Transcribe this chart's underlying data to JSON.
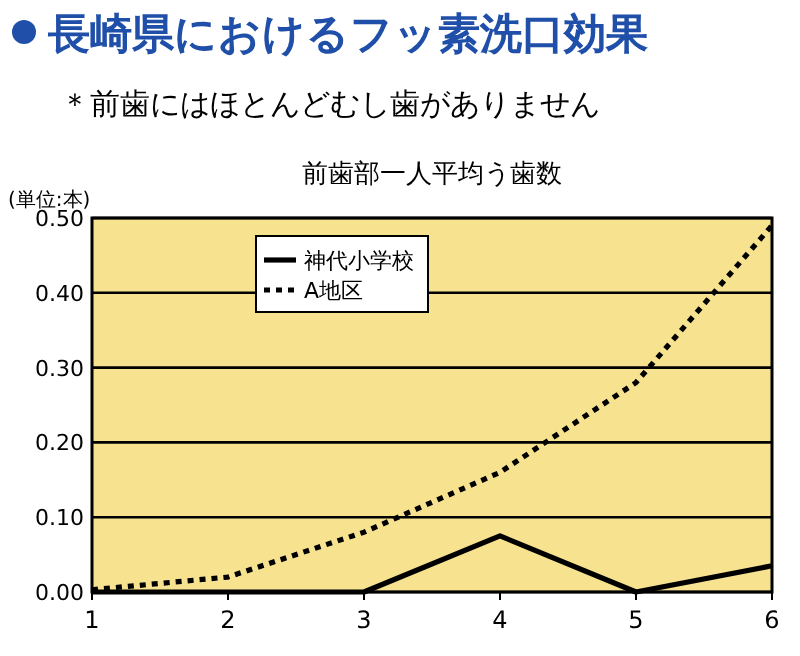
{
  "chart_data": {
    "type": "line",
    "title": "長崎県におけるフッ素洗口効果",
    "subtitle": "前歯部一人平均う歯数",
    "ylabel": "(単位:本)",
    "annotations": [
      "＊前歯にはほとんどむし歯がありません"
    ],
    "x": [
      1,
      2,
      3,
      4,
      5,
      6
    ],
    "xlim": [
      1,
      6
    ],
    "xticks": [
      1,
      2,
      3,
      4,
      5,
      6
    ],
    "ylim": [
      0,
      0.5
    ],
    "yticks": [
      {
        "value": 0,
        "label": "0.00"
      },
      {
        "value": 0.1,
        "label": "0.10"
      },
      {
        "value": 0.2,
        "label": "0.20"
      },
      {
        "value": 0.3,
        "label": "0.30"
      },
      {
        "value": 0.4,
        "label": "0.40"
      },
      {
        "value": 0.5,
        "label": "0.50"
      }
    ],
    "grid": "y",
    "legend": "top left",
    "series": [
      {
        "name": "神代小学校",
        "color": "#000000",
        "line_style": "solid",
        "values": [
          0,
          0,
          0,
          0.075,
          0,
          0.035
        ]
      },
      {
        "name": "A地区",
        "color": "#000000",
        "line_style": "dotted",
        "values": [
          0.003,
          0.02,
          0.08,
          0.16,
          0.28,
          0.49
        ]
      }
    ]
  }
}
